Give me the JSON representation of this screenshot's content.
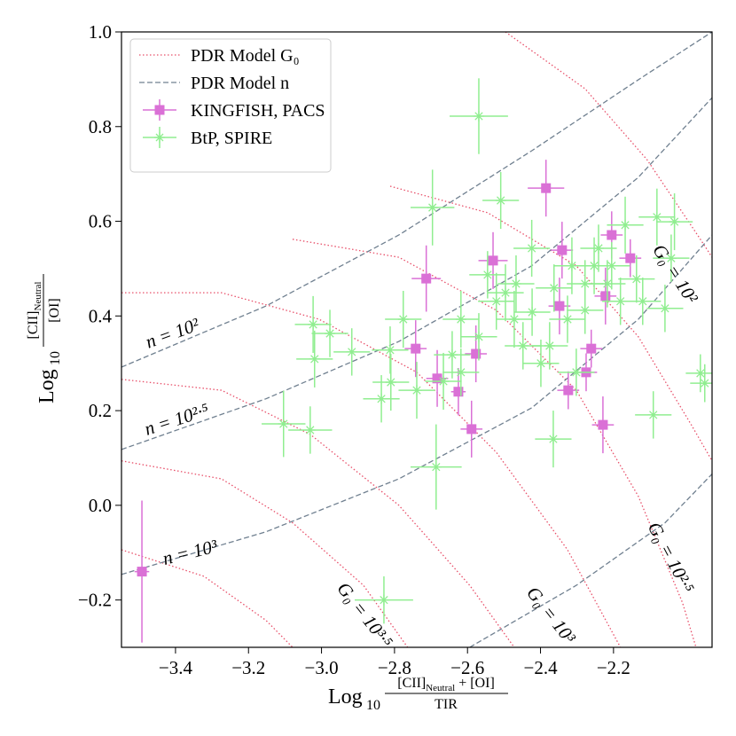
{
  "chart_data": {
    "type": "scatter",
    "x_label": {
      "log": "Log",
      "base": "10",
      "numerator": "[CII]",
      "numerator_sub": "Neutral",
      "numerator_rest": " + [OI]",
      "denominator": "TIR"
    },
    "y_label": {
      "log": "Log",
      "base": "10",
      "numerator": "[CII]",
      "numerator_sub": "Neutral",
      "denominator": "[OI]"
    },
    "xlim": [
      -3.548,
      -1.93
    ],
    "ylim": [
      -0.3,
      1.0
    ],
    "xticks": [
      {
        "value": -3.4,
        "label": "−3.4"
      },
      {
        "value": -3.2,
        "label": "−3.2"
      },
      {
        "value": -3.0,
        "label": "−3.0"
      },
      {
        "value": -2.8,
        "label": "−2.8"
      },
      {
        "value": -2.6,
        "label": "−2.6"
      },
      {
        "value": -2.4,
        "label": "−2.4"
      },
      {
        "value": -2.2,
        "label": "−2.2"
      }
    ],
    "yticks": [
      {
        "value": -0.2,
        "label": "−0.2"
      },
      {
        "value": 0.0,
        "label": "0.0"
      },
      0.2,
      0.4,
      0.6,
      0.8,
      {
        "value": 1.0,
        "label": "1.0"
      }
    ],
    "legend": "upper left",
    "series": [
      {
        "name": "PDR Model G₀",
        "color": "#e8506a",
        "style": "dotted",
        "curves": [
          {
            "x": [
              -2.496,
              -2.278,
              -2.108,
              -1.962,
              -1.93
            ],
            "values": [
              1.0,
              0.88,
              0.73,
              0.562,
              0.524
            ]
          },
          {
            "x": [
              -2.812,
              -2.545,
              -2.302,
              -2.132,
              -1.986,
              -1.93
            ],
            "values": [
              0.674,
              0.618,
              0.506,
              0.356,
              0.169,
              0.094
            ]
          },
          {
            "x": [
              -3.079,
              -2.788,
              -2.521,
              -2.302,
              -2.132,
              -2.011,
              -1.974
            ],
            "values": [
              0.562,
              0.524,
              0.412,
              0.243,
              0.019,
              -0.206,
              -0.3
            ]
          },
          {
            "x": [
              -3.548,
              -3.274,
              -3.007,
              -2.739,
              -2.521,
              -2.326,
              -2.181
            ],
            "values": [
              0.449,
              0.449,
              0.393,
              0.281,
              0.112,
              -0.094,
              -0.3
            ]
          },
          {
            "x": [
              -3.548,
              -3.274,
              -3.031,
              -2.788,
              -2.594,
              -2.472
            ],
            "values": [
              0.266,
              0.243,
              0.15,
              0.0,
              -0.169,
              -0.3
            ]
          },
          {
            "x": [
              -3.548,
              -3.274,
              -3.079,
              -2.885,
              -2.764
            ],
            "values": [
              0.094,
              0.056,
              -0.037,
              -0.169,
              -0.3
            ]
          },
          {
            "x": [
              -3.548,
              -3.322,
              -3.152,
              -3.079
            ],
            "values": [
              -0.094,
              -0.15,
              -0.243,
              -0.3
            ]
          }
        ]
      },
      {
        "name": "PDR Model n",
        "color": "#708090",
        "style": "dashed",
        "curves": [
          {
            "x": [
              -3.548,
              -3.152,
              -2.788,
              -2.424,
              -2.132,
              -1.93
            ],
            "values": [
              0.292,
              0.421,
              0.571,
              0.749,
              0.899,
              1.0
            ]
          },
          {
            "x": [
              -3.548,
              -3.152,
              -2.788,
              -2.424,
              -2.132,
              -1.93
            ],
            "values": [
              0.118,
              0.225,
              0.346,
              0.506,
              0.693,
              0.861
            ]
          },
          {
            "x": [
              -3.548,
              -3.152,
              -2.788,
              -2.424,
              -2.132,
              -1.93
            ],
            "values": [
              -0.146,
              -0.056,
              0.056,
              0.206,
              0.393,
              0.571
            ]
          },
          {
            "x": [
              -2.594,
              -2.302,
              -2.059,
              -1.93
            ],
            "values": [
              -0.3,
              -0.169,
              -0.037,
              0.066
            ]
          }
        ]
      },
      {
        "name": "KINGFISH, PACS",
        "color": "#da70d6",
        "marker": "square",
        "x": [
          -3.492,
          -2.385,
          -2.205,
          -2.154,
          -2.341,
          -2.53,
          -2.713,
          -2.348,
          -2.222,
          -2.742,
          -2.577,
          -2.261,
          -2.683,
          -2.625,
          -2.324,
          -2.275,
          -2.589,
          -2.229
        ],
        "values": [
          -0.14,
          0.67,
          0.571,
          0.522,
          0.539,
          0.517,
          0.479,
          0.421,
          0.442,
          0.331,
          0.32,
          0.331,
          0.268,
          0.24,
          0.243,
          0.281,
          0.161,
          0.17
        ],
        "xerr": [
          0.02,
          0.05,
          0.03,
          0.03,
          0.03,
          0.04,
          0.04,
          0.03,
          0.03,
          0.03,
          0.03,
          0.03,
          0.03,
          0.02,
          0.03,
          0.03,
          0.03,
          0.03
        ],
        "yerr": [
          0.15,
          0.06,
          0.05,
          0.04,
          0.06,
          0.06,
          0.07,
          0.06,
          0.06,
          0.06,
          0.06,
          0.04,
          0.06,
          0.05,
          0.04,
          0.04,
          0.06,
          0.06
        ]
      },
      {
        "name": "BtP, SPIRE",
        "color": "#90ee90",
        "marker": "star",
        "x": [
          -2.569,
          -2.696,
          -2.509,
          -3.023,
          -2.977,
          -3.019,
          -3.104,
          -3.031,
          -2.917,
          -2.81,
          -2.686,
          -2.829,
          -2.365,
          -2.091,
          -2.033,
          -1.962,
          -1.95,
          -2.168,
          -2.081,
          -2.042,
          -2.059,
          -2.424,
          -2.467,
          -2.423,
          -2.375,
          -2.326,
          -2.278,
          -2.253,
          -2.181,
          -2.137,
          -2.521,
          -2.569,
          -2.618,
          -2.642,
          -2.666,
          -2.618,
          -2.776,
          -2.812,
          -2.739,
          -2.836,
          -2.448,
          -2.399,
          -2.472,
          -2.302,
          -2.314,
          -2.205,
          -2.12,
          -2.278,
          -2.363,
          -2.496,
          -2.545,
          -2.241,
          -2.217
        ],
        "values": [
          0.822,
          0.629,
          0.644,
          0.382,
          0.363,
          0.309,
          0.172,
          0.159,
          0.324,
          0.26,
          0.081,
          -0.2,
          0.14,
          0.191,
          0.599,
          0.279,
          0.258,
          0.592,
          0.609,
          0.522,
          0.416,
          0.543,
          0.468,
          0.408,
          0.337,
          0.393,
          0.468,
          0.506,
          0.431,
          0.478,
          0.431,
          0.356,
          0.393,
          0.318,
          0.262,
          0.281,
          0.393,
          0.328,
          0.243,
          0.225,
          0.337,
          0.3,
          0.393,
          0.281,
          0.506,
          0.506,
          0.431,
          0.412,
          0.459,
          0.449,
          0.487,
          0.543,
          0.468
        ],
        "xerr": [
          0.08,
          0.06,
          0.05,
          0.05,
          0.05,
          0.05,
          0.06,
          0.06,
          0.05,
          0.05,
          0.07,
          0.08,
          0.05,
          0.05,
          0.05,
          0.04,
          0.04,
          0.05,
          0.05,
          0.05,
          0.05,
          0.05,
          0.05,
          0.05,
          0.05,
          0.05,
          0.05,
          0.05,
          0.05,
          0.05,
          0.05,
          0.05,
          0.05,
          0.05,
          0.05,
          0.05,
          0.05,
          0.05,
          0.05,
          0.05,
          0.05,
          0.05,
          0.05,
          0.05,
          0.05,
          0.05,
          0.05,
          0.05,
          0.05,
          0.05,
          0.05,
          0.05,
          0.05
        ],
        "yerr": [
          0.08,
          0.08,
          0.06,
          0.06,
          0.05,
          0.06,
          0.07,
          0.05,
          0.05,
          0.06,
          0.09,
          0.05,
          0.06,
          0.05,
          0.06,
          0.04,
          0.04,
          0.06,
          0.06,
          0.05,
          0.05,
          0.06,
          0.06,
          0.05,
          0.05,
          0.05,
          0.05,
          0.06,
          0.05,
          0.05,
          0.06,
          0.05,
          0.06,
          0.05,
          0.06,
          0.05,
          0.06,
          0.05,
          0.06,
          0.05,
          0.05,
          0.05,
          0.06,
          0.05,
          0.06,
          0.05,
          0.05,
          0.05,
          0.05,
          0.06,
          0.05,
          0.05,
          0.05
        ]
      }
    ],
    "annotations": [
      {
        "text": "n = 10²",
        "x": -3.407,
        "y": 0.36
      },
      {
        "text": "n = 10²·⁵",
        "x": -3.395,
        "y": 0.178
      },
      {
        "text": "n = 10³",
        "x": -3.359,
        "y": -0.103
      },
      {
        "text": "G₀ = 10²",
        "x": -2.035,
        "y": 0.487
      },
      {
        "text": "G₀ = 10²·⁵",
        "x": -2.047,
        "y": -0.112
      },
      {
        "text": "G₀ = 10³",
        "x": -2.375,
        "y": -0.234
      },
      {
        "text": "G₀ = 10³·⁵",
        "x": -2.885,
        "y": -0.234
      }
    ]
  }
}
